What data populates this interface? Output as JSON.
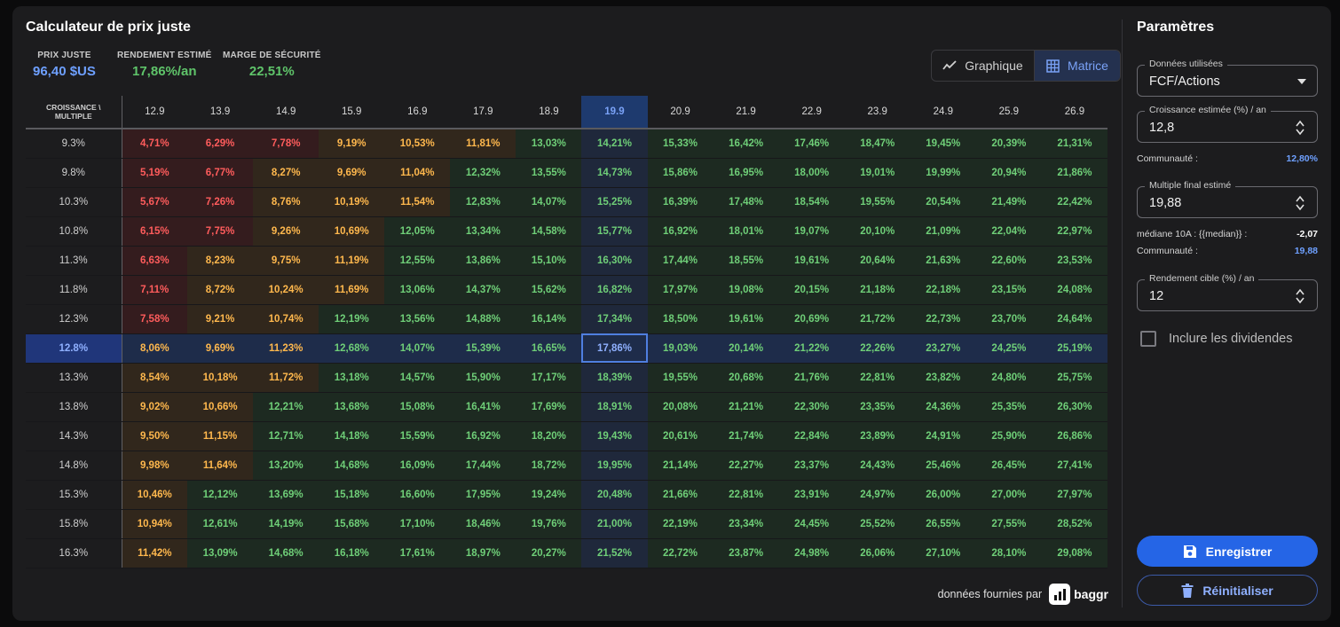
{
  "title": "Calculateur de prix juste",
  "metrics": [
    {
      "label": "PRIX JUSTE",
      "value": "96,40 $US",
      "color": "#6ea0ff"
    },
    {
      "label": "RENDEMENT ESTIMÉ",
      "value": "17,86%/an",
      "color": "#5fc46a"
    },
    {
      "label": "MARGE DE SÉCURITÉ",
      "value": "22,51%",
      "color": "#5fc46a"
    }
  ],
  "view_toggle": {
    "graph_label": "Graphique",
    "matrix_label": "Matrice",
    "graph_icon": "line-chart-icon",
    "matrix_icon": "grid-icon",
    "active": "Matrice"
  },
  "matrix": {
    "corner_line1": "CROISSANCE \\",
    "corner_line2": "MULTIPLE",
    "highlight_col": 7,
    "highlight_row": 7,
    "columns": [
      "12.9",
      "13.9",
      "14.9",
      "15.9",
      "16.9",
      "17.9",
      "18.9",
      "19.9",
      "20.9",
      "21.9",
      "22.9",
      "23.9",
      "24.9",
      "25.9",
      "26.9"
    ],
    "rows": [
      {
        "label": "9.3%",
        "cells": [
          "4,71%",
          "6,29%",
          "7,78%",
          "9,19%",
          "10,53%",
          "11,81%",
          "13,03%",
          "14,21%",
          "15,33%",
          "16,42%",
          "17,46%",
          "18,47%",
          "19,45%",
          "20,39%",
          "21,31%"
        ]
      },
      {
        "label": "9.8%",
        "cells": [
          "5,19%",
          "6,77%",
          "8,27%",
          "9,69%",
          "11,04%",
          "12,32%",
          "13,55%",
          "14,73%",
          "15,86%",
          "16,95%",
          "18,00%",
          "19,01%",
          "19,99%",
          "20,94%",
          "21,86%"
        ]
      },
      {
        "label": "10.3%",
        "cells": [
          "5,67%",
          "7,26%",
          "8,76%",
          "10,19%",
          "11,54%",
          "12,83%",
          "14,07%",
          "15,25%",
          "16,39%",
          "17,48%",
          "18,54%",
          "19,55%",
          "20,54%",
          "21,49%",
          "22,42%"
        ]
      },
      {
        "label": "10.8%",
        "cells": [
          "6,15%",
          "7,75%",
          "9,26%",
          "10,69%",
          "12,05%",
          "13,34%",
          "14,58%",
          "15,77%",
          "16,92%",
          "18,01%",
          "19,07%",
          "20,10%",
          "21,09%",
          "22,04%",
          "22,97%"
        ]
      },
      {
        "label": "11.3%",
        "cells": [
          "6,63%",
          "8,23%",
          "9,75%",
          "11,19%",
          "12,55%",
          "13,86%",
          "15,10%",
          "16,30%",
          "17,44%",
          "18,55%",
          "19,61%",
          "20,64%",
          "21,63%",
          "22,60%",
          "23,53%"
        ]
      },
      {
        "label": "11.8%",
        "cells": [
          "7,11%",
          "8,72%",
          "10,24%",
          "11,69%",
          "13,06%",
          "14,37%",
          "15,62%",
          "16,82%",
          "17,97%",
          "19,08%",
          "20,15%",
          "21,18%",
          "22,18%",
          "23,15%",
          "24,08%"
        ]
      },
      {
        "label": "12.3%",
        "cells": [
          "7,58%",
          "9,21%",
          "10,74%",
          "12,19%",
          "13,56%",
          "14,88%",
          "16,14%",
          "17,34%",
          "18,50%",
          "19,61%",
          "20,69%",
          "21,72%",
          "22,73%",
          "23,70%",
          "24,64%"
        ]
      },
      {
        "label": "12.8%",
        "cells": [
          "8,06%",
          "9,69%",
          "11,23%",
          "12,68%",
          "14,07%",
          "15,39%",
          "16,65%",
          "17,86%",
          "19,03%",
          "20,14%",
          "21,22%",
          "22,26%",
          "23,27%",
          "24,25%",
          "25,19%"
        ]
      },
      {
        "label": "13.3%",
        "cells": [
          "8,54%",
          "10,18%",
          "11,72%",
          "13,18%",
          "14,57%",
          "15,90%",
          "17,17%",
          "18,39%",
          "19,55%",
          "20,68%",
          "21,76%",
          "22,81%",
          "23,82%",
          "24,80%",
          "25,75%"
        ]
      },
      {
        "label": "13.8%",
        "cells": [
          "9,02%",
          "10,66%",
          "12,21%",
          "13,68%",
          "15,08%",
          "16,41%",
          "17,69%",
          "18,91%",
          "20,08%",
          "21,21%",
          "22,30%",
          "23,35%",
          "24,36%",
          "25,35%",
          "26,30%"
        ]
      },
      {
        "label": "14.3%",
        "cells": [
          "9,50%",
          "11,15%",
          "12,71%",
          "14,18%",
          "15,59%",
          "16,92%",
          "18,20%",
          "19,43%",
          "20,61%",
          "21,74%",
          "22,84%",
          "23,89%",
          "24,91%",
          "25,90%",
          "26,86%"
        ]
      },
      {
        "label": "14.8%",
        "cells": [
          "9,98%",
          "11,64%",
          "13,20%",
          "14,68%",
          "16,09%",
          "17,44%",
          "18,72%",
          "19,95%",
          "21,14%",
          "22,27%",
          "23,37%",
          "24,43%",
          "25,46%",
          "26,45%",
          "27,41%"
        ]
      },
      {
        "label": "15.3%",
        "cells": [
          "10,46%",
          "12,12%",
          "13,69%",
          "15,18%",
          "16,60%",
          "17,95%",
          "19,24%",
          "20,48%",
          "21,66%",
          "22,81%",
          "23,91%",
          "24,97%",
          "26,00%",
          "27,00%",
          "27,97%"
        ]
      },
      {
        "label": "15.8%",
        "cells": [
          "10,94%",
          "12,61%",
          "14,19%",
          "15,68%",
          "17,10%",
          "18,46%",
          "19,76%",
          "21,00%",
          "22,19%",
          "23,34%",
          "24,45%",
          "25,52%",
          "26,55%",
          "27,55%",
          "28,52%"
        ]
      },
      {
        "label": "16.3%",
        "cells": [
          "11,42%",
          "13,09%",
          "14,68%",
          "16,18%",
          "17,61%",
          "18,97%",
          "20,27%",
          "21,52%",
          "22,72%",
          "23,87%",
          "24,98%",
          "26,06%",
          "27,10%",
          "28,10%",
          "29,08%"
        ]
      }
    ]
  },
  "footer": {
    "text": "données fournies par",
    "brand": "baggr"
  },
  "params": {
    "title": "Paramètres",
    "data_used": {
      "label": "Données utilisées",
      "value": "FCF/Actions"
    },
    "growth": {
      "label": "Croissance estimée (%) / an",
      "value": "12,8",
      "community_label": "Communauté :",
      "community_value": "12,80%"
    },
    "multiple": {
      "label": "Multiple final estimé",
      "value": "19,88",
      "median_label": "médiane 10A : {{median}} :",
      "median_value": "-2,07",
      "community_label": "Communauté :",
      "community_value": "19,88"
    },
    "target": {
      "label": "Rendement cible (%) / an",
      "value": "12"
    },
    "dividends_label": "Inclure les dividendes",
    "save_label": "Enregistrer",
    "reset_label": "Réinitialiser"
  }
}
